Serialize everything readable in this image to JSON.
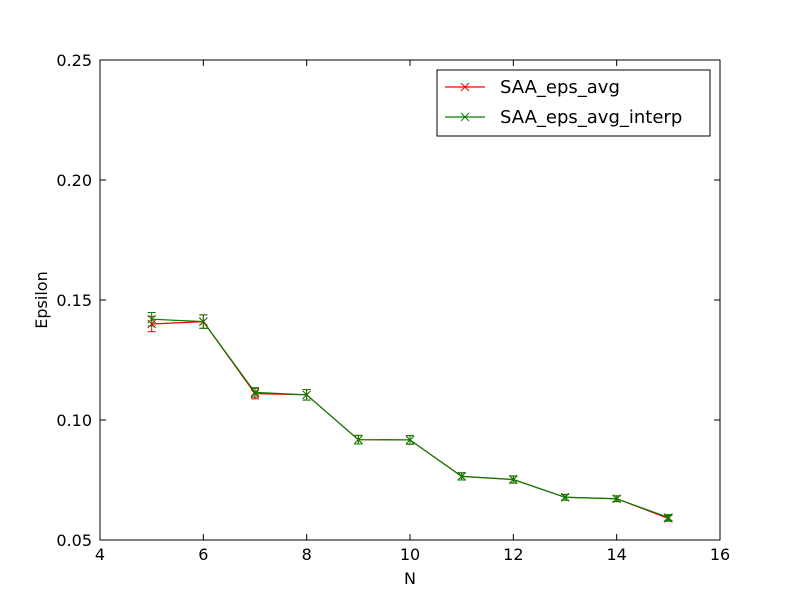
{
  "chart_data": {
    "type": "line",
    "title": "",
    "xlabel": "N",
    "ylabel": "Epsilon",
    "xlim": [
      4,
      16
    ],
    "ylim": [
      0.05,
      0.25
    ],
    "xticks": [
      4,
      6,
      8,
      10,
      12,
      14,
      16
    ],
    "xtick_labels": [
      "4",
      "6",
      "8",
      "10",
      "12",
      "14",
      "16"
    ],
    "yticks": [
      0.05,
      0.1,
      0.15,
      0.2,
      0.25
    ],
    "ytick_labels": [
      "0.05",
      "0.10",
      "0.15",
      "0.20",
      "0.25"
    ],
    "grid": false,
    "legend_position": "top-right",
    "x": [
      5,
      6,
      7,
      8,
      9,
      10,
      11,
      12,
      13,
      14,
      15
    ],
    "series": [
      {
        "name": "SAA_eps_avg",
        "color": "#ff0000",
        "marker": "x",
        "values": [
          0.14,
          0.141,
          0.111,
          0.1105,
          0.0918,
          0.0917,
          0.0765,
          0.0752,
          0.0678,
          0.0672,
          0.059
        ],
        "errors": [
          0.0032,
          0.0028,
          0.0022,
          0.0022,
          0.0018,
          0.0018,
          0.0015,
          0.0015,
          0.0012,
          0.0012,
          0.0012
        ]
      },
      {
        "name": "SAA_eps_avg_interp",
        "color": "#008000",
        "marker": "x",
        "values": [
          0.142,
          0.141,
          0.1115,
          0.1105,
          0.0918,
          0.0917,
          0.0765,
          0.0752,
          0.0678,
          0.0672,
          0.0594
        ],
        "errors": [
          0.0028,
          0.0028,
          0.002,
          0.0022,
          0.0018,
          0.0018,
          0.0015,
          0.0015,
          0.0012,
          0.0012,
          0.0012
        ]
      }
    ]
  }
}
